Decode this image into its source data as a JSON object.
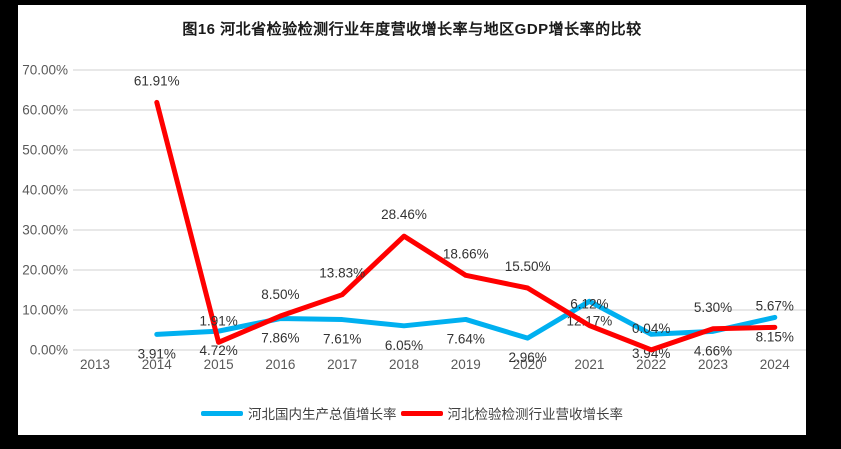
{
  "window": {
    "background": "#000000",
    "panel_background": "#FFFFFF"
  },
  "chart_data": {
    "type": "line",
    "title": "图16 河北省检验检测行业年度营收增长率与地区GDP增长率的比较",
    "categories": [
      "2013",
      "2014",
      "2015",
      "2016",
      "2017",
      "2018",
      "2019",
      "2020",
      "2021",
      "2022",
      "2023",
      "2024"
    ],
    "series": [
      {
        "name": "河北国内生产总值增长率",
        "color": "#00B0F0",
        "label_position": "below",
        "values": [
          null,
          3.91,
          4.72,
          7.86,
          7.61,
          6.05,
          7.64,
          2.96,
          12.17,
          3.94,
          4.66,
          8.15
        ]
      },
      {
        "name": "河北检验检测行业营收增长率",
        "color": "#FF0000",
        "label_position": "above",
        "values": [
          null,
          61.91,
          1.91,
          8.5,
          13.83,
          28.46,
          18.66,
          15.5,
          6.12,
          0.04,
          5.3,
          5.67
        ]
      }
    ],
    "yticks": [
      "0.00%",
      "10.00%",
      "20.00%",
      "30.00%",
      "40.00%",
      "50.00%",
      "60.00%",
      "70.00%"
    ],
    "ylim": [
      0,
      70
    ],
    "grid": true,
    "legend_position": "bottom",
    "label_format": "0.00%"
  },
  "colors": {
    "gridline": "#D9D9D9",
    "axis_text": "#595959",
    "data_label": "#333333",
    "title_text": "#1A1A1A"
  }
}
